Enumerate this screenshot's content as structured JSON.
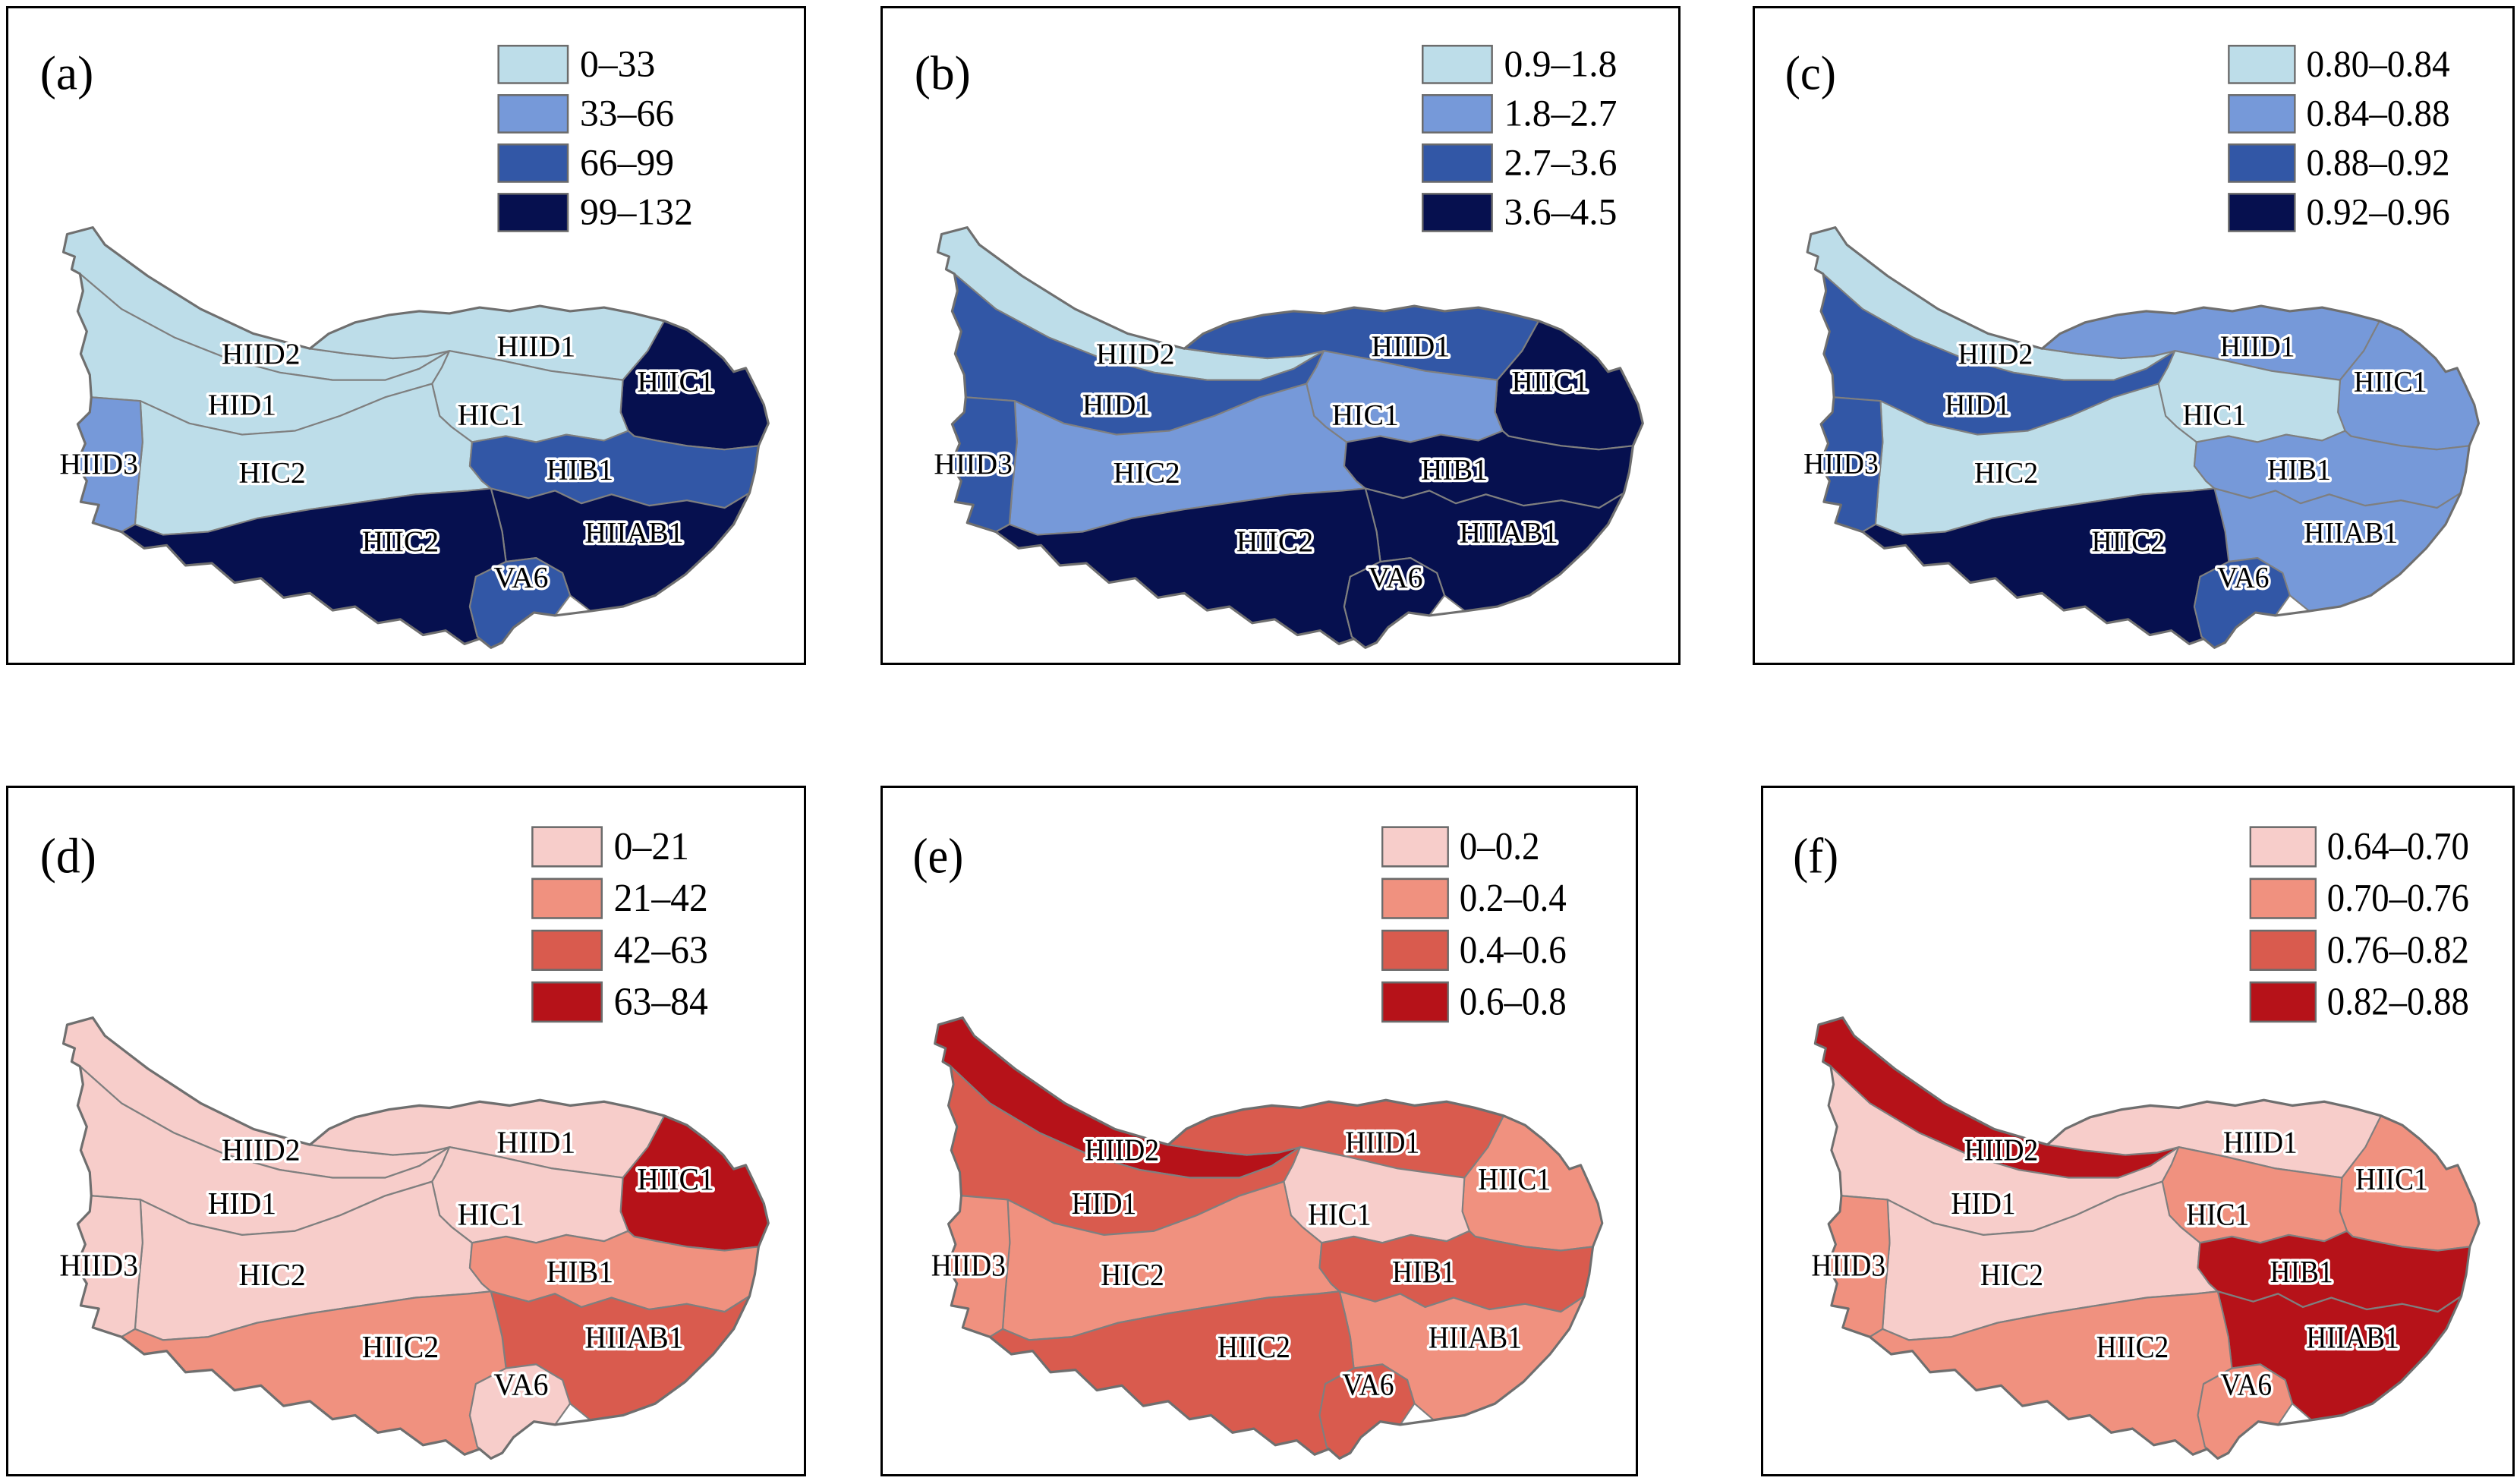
{
  "palettes": {
    "blue": [
      "#bddde9",
      "#7699d9",
      "#3257a6",
      "#06104f"
    ],
    "red": [
      "#f7cdca",
      "#f0917f",
      "#d95b4e",
      "#b61219"
    ]
  },
  "region_names": [
    "HIID2",
    "HID1",
    "HIID1",
    "HIIC1",
    "HIC1",
    "HIC2",
    "HIID3",
    "HIB1",
    "HIIAB1",
    "HIIC2",
    "VA6"
  ],
  "panels": [
    {
      "id": "a",
      "letter": "(a)",
      "palette": "blue",
      "legend_labels": [
        "0–33",
        "33–66",
        "66–99",
        "99–132"
      ],
      "regions": {
        "HIID2": 1,
        "HID1": 1,
        "HIID1": 1,
        "HIIC1": 4,
        "HIC1": 1,
        "HIC2": 1,
        "HIID3": 2,
        "HIB1": 3,
        "HIIAB1": 4,
        "HIIC2": 4,
        "VA6": 3
      }
    },
    {
      "id": "b",
      "letter": "(b)",
      "palette": "blue",
      "legend_labels": [
        "0.9–1.8",
        "1.8–2.7",
        "2.7–3.6",
        "3.6–4.5"
      ],
      "regions": {
        "HIID2": 1,
        "HID1": 3,
        "HIID1": 3,
        "HIIC1": 4,
        "HIC1": 2,
        "HIC2": 2,
        "HIID3": 3,
        "HIB1": 4,
        "HIIAB1": 4,
        "HIIC2": 4,
        "VA6": 4
      }
    },
    {
      "id": "c",
      "letter": "(c)",
      "palette": "blue",
      "legend_labels": [
        "0.80–0.84",
        "0.84–0.88",
        "0.88–0.92",
        "0.92–0.96"
      ],
      "regions": {
        "HIID2": 1,
        "HID1": 3,
        "HIID1": 2,
        "HIIC1": 2,
        "HIC1": 1,
        "HIC2": 1,
        "HIID3": 3,
        "HIB1": 2,
        "HIIAB1": 2,
        "HIIC2": 4,
        "VA6": 3
      }
    },
    {
      "id": "d",
      "letter": "(d)",
      "palette": "red",
      "legend_labels": [
        "0–21",
        "21–42",
        "42–63",
        "63–84"
      ],
      "regions": {
        "HIID2": 1,
        "HID1": 1,
        "HIID1": 1,
        "HIIC1": 4,
        "HIC1": 1,
        "HIC2": 1,
        "HIID3": 1,
        "HIB1": 2,
        "HIIAB1": 3,
        "HIIC2": 2,
        "VA6": 1
      }
    },
    {
      "id": "e",
      "letter": "(e)",
      "palette": "red",
      "legend_labels": [
        "0–0.2",
        "0.2–0.4",
        "0.4–0.6",
        "0.6–0.8"
      ],
      "regions": {
        "HIID2": 4,
        "HID1": 3,
        "HIID1": 3,
        "HIIC1": 2,
        "HIC1": 1,
        "HIC2": 2,
        "HIID3": 2,
        "HIB1": 3,
        "HIIAB1": 2,
        "HIIC2": 3,
        "VA6": 3
      }
    },
    {
      "id": "f",
      "letter": "(f)",
      "palette": "red",
      "legend_labels": [
        "0.64–0.70",
        "0.70–0.76",
        "0.76–0.82",
        "0.82–0.88"
      ],
      "regions": {
        "HIID2": 4,
        "HID1": 1,
        "HIID1": 1,
        "HIIC1": 2,
        "HIC1": 2,
        "HIC2": 1,
        "HIID3": 2,
        "HIB1": 4,
        "HIIAB1": 4,
        "HIIC2": 2,
        "VA6": 2
      }
    }
  ]
}
